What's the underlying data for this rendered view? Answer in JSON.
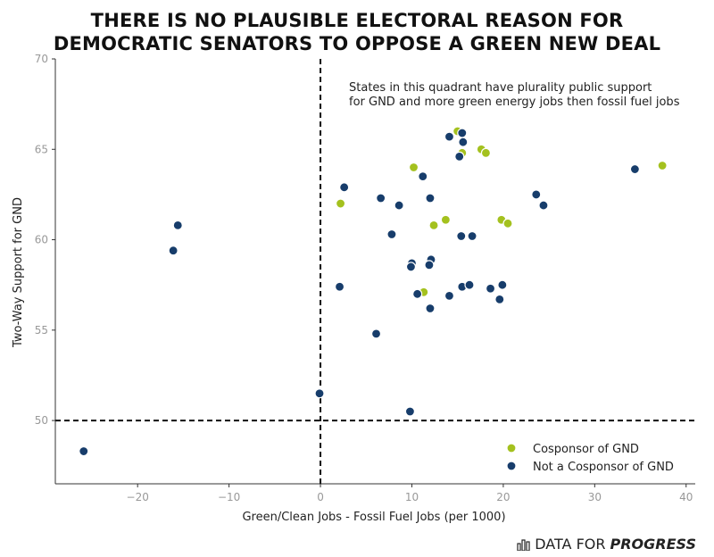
{
  "title_lines": [
    "THERE IS NO PLAUSIBLE ELECTORAL REASON FOR",
    "DEMOCRATIC SENATORS TO OPPOSE A GREEN NEW DEAL"
  ],
  "annotation_lines": [
    "States in this quadrant have plurality public support",
    "for GND and more green energy jobs then fossil fuel jobs"
  ],
  "footer": {
    "brand_light": "DATA FOR",
    "brand_bold": "PROGRESS",
    "logo_icon": "bar-chart-icon"
  },
  "colors": {
    "cosponsor": "#a4c11e",
    "not_cosponsor": "#173d6b"
  },
  "chart_data": {
    "type": "scatter",
    "xlabel": "Green/Clean Jobs - Fossil Fuel Jobs (per 1000)",
    "ylabel": "Two-Way Support for GND",
    "xlim": [
      -29,
      41
    ],
    "ylim": [
      46.5,
      70
    ],
    "xticks": [
      -20,
      -10,
      0,
      10,
      20,
      30,
      40
    ],
    "yticks": [
      50,
      55,
      60,
      65,
      70
    ],
    "xtick_labels": [
      "−20",
      "−10",
      "0",
      "10",
      "20",
      "30",
      "40"
    ],
    "ytick_labels": [
      "50",
      "55",
      "60",
      "65",
      "70"
    ],
    "reference_lines": {
      "x": 0,
      "y": 50
    },
    "legend_position": "bottom-right",
    "series": [
      {
        "name": "Cosponsor of GND",
        "color": "#a4c11e",
        "points": [
          {
            "x": 15.0,
            "y": 66.0
          },
          {
            "x": 15.5,
            "y": 64.8
          },
          {
            "x": 17.6,
            "y": 65.0
          },
          {
            "x": 18.1,
            "y": 64.8
          },
          {
            "x": 10.2,
            "y": 64.0
          },
          {
            "x": 37.4,
            "y": 64.1
          },
          {
            "x": 2.2,
            "y": 62.0
          },
          {
            "x": 13.7,
            "y": 61.1
          },
          {
            "x": 12.4,
            "y": 60.8
          },
          {
            "x": 19.8,
            "y": 61.1
          },
          {
            "x": 20.5,
            "y": 60.9
          },
          {
            "x": 11.3,
            "y": 57.1
          }
        ]
      },
      {
        "name": "Not a Cosponsor of GND",
        "color": "#173d6b",
        "points": [
          {
            "x": 14.1,
            "y": 65.7
          },
          {
            "x": 15.5,
            "y": 65.9
          },
          {
            "x": 15.6,
            "y": 65.4
          },
          {
            "x": 15.2,
            "y": 64.6
          },
          {
            "x": 11.2,
            "y": 63.5
          },
          {
            "x": 34.4,
            "y": 63.9
          },
          {
            "x": 2.6,
            "y": 62.9
          },
          {
            "x": 6.6,
            "y": 62.3
          },
          {
            "x": 8.6,
            "y": 61.9
          },
          {
            "x": 12.0,
            "y": 62.3
          },
          {
            "x": 23.6,
            "y": 62.5
          },
          {
            "x": 24.4,
            "y": 61.9
          },
          {
            "x": -15.6,
            "y": 60.8
          },
          {
            "x": -16.1,
            "y": 59.4
          },
          {
            "x": 7.8,
            "y": 60.3
          },
          {
            "x": 15.4,
            "y": 60.2
          },
          {
            "x": 16.6,
            "y": 60.2
          },
          {
            "x": 10.0,
            "y": 58.7
          },
          {
            "x": 9.9,
            "y": 58.5
          },
          {
            "x": 12.1,
            "y": 58.9
          },
          {
            "x": 11.9,
            "y": 58.6
          },
          {
            "x": 2.1,
            "y": 57.4
          },
          {
            "x": 10.6,
            "y": 57.0
          },
          {
            "x": 14.1,
            "y": 56.9
          },
          {
            "x": 15.5,
            "y": 57.4
          },
          {
            "x": 16.3,
            "y": 57.5
          },
          {
            "x": 18.6,
            "y": 57.3
          },
          {
            "x": 19.9,
            "y": 57.5
          },
          {
            "x": 19.6,
            "y": 56.7
          },
          {
            "x": 12.0,
            "y": 56.2
          },
          {
            "x": 6.1,
            "y": 54.8
          },
          {
            "x": -0.1,
            "y": 51.5
          },
          {
            "x": 9.8,
            "y": 50.5
          },
          {
            "x": -25.9,
            "y": 48.3
          }
        ]
      }
    ]
  }
}
